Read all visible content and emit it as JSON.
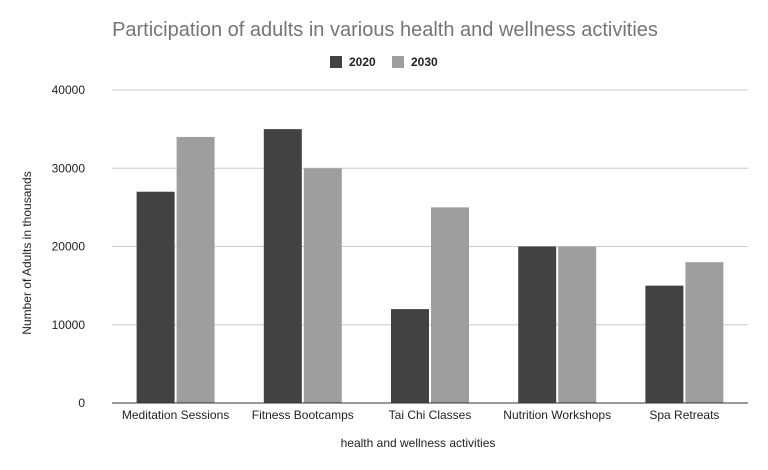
{
  "chart_data": {
    "type": "bar",
    "title": "Participation of adults in various health and wellness activities",
    "xlabel": "health and wellness activities",
    "ylabel": "Number of Adults in thousands",
    "categories": [
      "Meditation Sessions",
      "Fitness Bootcamps",
      "Tai Chi Classes",
      "Nutrition Workshops",
      "Spa Retreats"
    ],
    "series": [
      {
        "name": "2020",
        "values": [
          27000,
          35000,
          12000,
          20000,
          15000
        ],
        "color": "#424242"
      },
      {
        "name": "2030",
        "values": [
          34000,
          30000,
          25000,
          20000,
          18000
        ],
        "color": "#9e9e9e"
      }
    ],
    "ylim": [
      0,
      40000
    ],
    "yticks": [
      "0",
      "10000",
      "20000",
      "30000",
      "40000"
    ],
    "grid": true,
    "legend_position": "top"
  }
}
